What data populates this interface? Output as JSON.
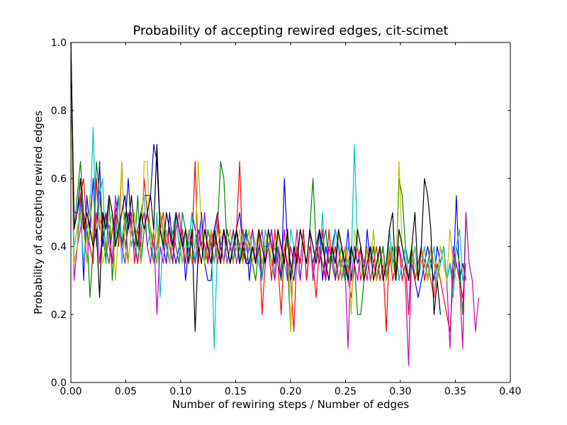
{
  "chart_data": {
    "type": "line",
    "title": "Probability of accepting rewired edges, cit-scimet",
    "xlabel": "Number of rewiring steps / Number of edges",
    "ylabel": "Probability of accepting rewired edges",
    "xlim": [
      0.0,
      0.4
    ],
    "ylim": [
      0.0,
      1.0
    ],
    "x_ticks": [
      "0.00",
      "0.05",
      "0.10",
      "0.15",
      "0.20",
      "0.25",
      "0.30",
      "0.35",
      "0.40"
    ],
    "y_ticks": [
      "0.0",
      "0.2",
      "0.4",
      "0.6",
      "0.8",
      "1.0"
    ],
    "grid": false,
    "legend": "none",
    "x_step": 0.0029,
    "series": [
      {
        "color": "#0000ff",
        "values": [
          1.0,
          0.5,
          0.5,
          0.55,
          0.3,
          0.55,
          0.45,
          0.6,
          0.4,
          0.65,
          0.4,
          0.5,
          0.45,
          0.35,
          0.5,
          0.55,
          0.4,
          0.45,
          0.6,
          0.45,
          0.4,
          0.45,
          0.5,
          0.55,
          0.55,
          0.55,
          0.7,
          0.65,
          0.45,
          0.4,
          0.35,
          0.5,
          0.4,
          0.35,
          0.4,
          0.45,
          0.3,
          0.4,
          0.5,
          0.45,
          0.4,
          0.5,
          0.35,
          0.3,
          0.3,
          0.45,
          0.5,
          0.4,
          0.35,
          0.45,
          0.4,
          0.35,
          0.45,
          0.5,
          0.4,
          0.45,
          0.3,
          0.4,
          0.35,
          0.45,
          0.3,
          0.4,
          0.4,
          0.45,
          0.35,
          0.4,
          0.3,
          0.6,
          0.4,
          0.35,
          0.3,
          0.4,
          0.35,
          0.45,
          0.3,
          0.4,
          0.35,
          0.4,
          0.45,
          0.3,
          0.4,
          0.35,
          0.4,
          0.45,
          0.4,
          0.3,
          0.35,
          0.45,
          0.3,
          0.4,
          0.35,
          0.4,
          0.3,
          0.45,
          0.35,
          0.4,
          0.3,
          0.35,
          0.4,
          0.3,
          0.45,
          0.35,
          0.4,
          0.3,
          0.35,
          0.4,
          0.3,
          0.35,
          0.3,
          0.25,
          0.3,
          0.35,
          0.4,
          0.35,
          0.3,
          0.4,
          0.35,
          0.4,
          0.3,
          0.35,
          0.3,
          0.55,
          0.3,
          0.35,
          0.3
        ]
      },
      {
        "color": "#008000",
        "values": [
          1.0,
          0.45,
          0.55,
          0.65,
          0.5,
          0.45,
          0.25,
          0.4,
          0.65,
          0.55,
          0.45,
          0.35,
          0.55,
          0.3,
          0.45,
          0.55,
          0.4,
          0.5,
          0.35,
          0.45,
          0.4,
          0.55,
          0.35,
          0.45,
          0.5,
          0.4,
          0.35,
          0.4,
          0.5,
          0.45,
          0.4,
          0.35,
          0.45,
          0.4,
          0.35,
          0.5,
          0.45,
          0.4,
          0.35,
          0.4,
          0.45,
          0.4,
          0.35,
          0.45,
          0.4,
          0.35,
          0.45,
          0.65,
          0.6,
          0.4,
          0.35,
          0.4,
          0.45,
          0.4,
          0.35,
          0.45,
          0.4,
          0.35,
          0.3,
          0.4,
          0.35,
          0.4,
          0.45,
          0.35,
          0.4,
          0.35,
          0.3,
          0.4,
          0.35,
          0.15,
          0.4,
          0.35,
          0.45,
          0.4,
          0.35,
          0.45,
          0.6,
          0.4,
          0.35,
          0.4,
          0.45,
          0.35,
          0.4,
          0.3,
          0.35,
          0.4,
          0.3,
          0.35,
          0.4,
          0.35,
          0.2,
          0.2,
          0.3,
          0.4,
          0.35,
          0.4,
          0.3,
          0.35,
          0.4,
          0.3,
          0.35,
          0.4,
          0.3,
          0.6,
          0.55,
          0.4,
          0.35,
          0.4,
          0.3,
          0.35,
          0.4,
          0.3,
          0.35,
          0.4,
          0.35,
          0.3,
          0.35,
          0.4,
          0.3,
          0.35,
          0.3,
          0.4,
          0.35,
          0.2,
          0.5
        ]
      },
      {
        "color": "#ff0000",
        "values": [
          0.95,
          0.35,
          0.4,
          0.55,
          0.6,
          0.45,
          0.4,
          0.35,
          0.6,
          0.45,
          0.5,
          0.4,
          0.35,
          0.45,
          0.5,
          0.4,
          0.65,
          0.4,
          0.45,
          0.5,
          0.35,
          0.45,
          0.4,
          0.6,
          0.5,
          0.45,
          0.4,
          0.35,
          0.45,
          0.5,
          0.4,
          0.45,
          0.35,
          0.5,
          0.4,
          0.45,
          0.35,
          0.45,
          0.4,
          0.65,
          0.35,
          0.45,
          0.4,
          0.35,
          0.45,
          0.4,
          0.5,
          0.35,
          0.45,
          0.4,
          0.35,
          0.4,
          0.45,
          0.65,
          0.35,
          0.4,
          0.45,
          0.35,
          0.4,
          0.45,
          0.2,
          0.35,
          0.4,
          0.3,
          0.45,
          0.35,
          0.2,
          0.4,
          0.35,
          0.3,
          0.15,
          0.4,
          0.35,
          0.45,
          0.3,
          0.4,
          0.35,
          0.25,
          0.4,
          0.35,
          0.3,
          0.45,
          0.35,
          0.4,
          0.3,
          0.35,
          0.4,
          0.3,
          0.25,
          0.35,
          0.4,
          0.3,
          0.35,
          0.4,
          0.3,
          0.35,
          0.4,
          0.3,
          0.35,
          0.15,
          0.4,
          0.3,
          0.35,
          0.4,
          0.3,
          0.35,
          0.2,
          0.4,
          0.3,
          0.35,
          0.4,
          0.3,
          0.35,
          0.3,
          0.25,
          0.35,
          0.3,
          0.25,
          0.2,
          0.15,
          0.3,
          0.35,
          0.3,
          0.25,
          0.35
        ]
      },
      {
        "color": "#00bfbf",
        "values": [
          0.95,
          0.4,
          0.45,
          0.5,
          0.35,
          0.45,
          0.5,
          0.75,
          0.4,
          0.55,
          0.6,
          0.35,
          0.45,
          0.5,
          0.4,
          0.55,
          0.35,
          0.45,
          0.5,
          0.4,
          0.45,
          0.35,
          0.5,
          0.55,
          0.4,
          0.45,
          0.35,
          0.5,
          0.25,
          0.45,
          0.4,
          0.35,
          0.45,
          0.5,
          0.4,
          0.35,
          0.45,
          0.4,
          0.5,
          0.35,
          0.4,
          0.45,
          0.35,
          0.4,
          0.45,
          0.1,
          0.4,
          0.35,
          0.45,
          0.4,
          0.35,
          0.45,
          0.4,
          0.35,
          0.45,
          0.4,
          0.35,
          0.45,
          0.4,
          0.35,
          0.3,
          0.45,
          0.4,
          0.35,
          0.3,
          0.45,
          0.4,
          0.35,
          0.3,
          0.45,
          0.4,
          0.35,
          0.3,
          0.4,
          0.35,
          0.45,
          0.3,
          0.4,
          0.35,
          0.5,
          0.3,
          0.4,
          0.35,
          0.45,
          0.4,
          0.35,
          0.3,
          0.4,
          0.35,
          0.7,
          0.4,
          0.35,
          0.3,
          0.4,
          0.35,
          0.45,
          0.3,
          0.4,
          0.35,
          0.3,
          0.45,
          0.35,
          0.4,
          0.3,
          0.35,
          0.4,
          0.3,
          0.35,
          0.4,
          0.3,
          0.35,
          0.4,
          0.3,
          0.35,
          0.4,
          0.3,
          0.35,
          0.4,
          0.3,
          0.35,
          0.25,
          0.4,
          0.45,
          0.3,
          0.35
        ]
      },
      {
        "color": "#bf00bf",
        "values": [
          0.95,
          0.3,
          0.4,
          0.45,
          0.5,
          0.35,
          0.45,
          0.4,
          0.5,
          0.35,
          0.45,
          0.5,
          0.4,
          0.35,
          0.55,
          0.45,
          0.4,
          0.35,
          0.5,
          0.45,
          0.4,
          0.35,
          0.45,
          0.5,
          0.4,
          0.35,
          0.45,
          0.2,
          0.4,
          0.35,
          0.45,
          0.4,
          0.35,
          0.45,
          0.5,
          0.4,
          0.35,
          0.45,
          0.4,
          0.35,
          0.45,
          0.4,
          0.5,
          0.35,
          0.4,
          0.45,
          0.35,
          0.4,
          0.45,
          0.35,
          0.4,
          0.45,
          0.35,
          0.4,
          0.45,
          0.35,
          0.4,
          0.45,
          0.35,
          0.4,
          0.45,
          0.35,
          0.4,
          0.45,
          0.3,
          0.4,
          0.35,
          0.45,
          0.3,
          0.4,
          0.35,
          0.45,
          0.3,
          0.4,
          0.35,
          0.45,
          0.3,
          0.4,
          0.35,
          0.45,
          0.3,
          0.4,
          0.35,
          0.3,
          0.45,
          0.4,
          0.35,
          0.1,
          0.4,
          0.35,
          0.3,
          0.4,
          0.35,
          0.3,
          0.4,
          0.35,
          0.3,
          0.4,
          0.35,
          0.3,
          0.4,
          0.35,
          0.3,
          0.4,
          0.35,
          0.3,
          0.05,
          0.4,
          0.35,
          0.3,
          0.4,
          0.35,
          0.3,
          0.4,
          0.35,
          0.3,
          0.4,
          0.35,
          0.3,
          0.1,
          0.4,
          0.35,
          0.3,
          0.1,
          0.5,
          0.35,
          0.3,
          0.15,
          0.25
        ]
      },
      {
        "color": "#bfbf00",
        "values": [
          0.95,
          0.35,
          0.4,
          0.5,
          0.45,
          0.35,
          0.55,
          0.4,
          0.45,
          0.5,
          0.35,
          0.4,
          0.45,
          0.5,
          0.3,
          0.45,
          0.65,
          0.4,
          0.35,
          0.45,
          0.5,
          0.4,
          0.35,
          0.65,
          0.65,
          0.4,
          0.45,
          0.35,
          0.5,
          0.4,
          0.45,
          0.35,
          0.4,
          0.5,
          0.45,
          0.35,
          0.4,
          0.45,
          0.35,
          0.4,
          0.65,
          0.45,
          0.35,
          0.4,
          0.45,
          0.35,
          0.4,
          0.45,
          0.35,
          0.4,
          0.45,
          0.35,
          0.4,
          0.45,
          0.35,
          0.4,
          0.45,
          0.35,
          0.4,
          0.45,
          0.35,
          0.4,
          0.45,
          0.35,
          0.4,
          0.45,
          0.35,
          0.4,
          0.45,
          0.15,
          0.4,
          0.35,
          0.45,
          0.4,
          0.35,
          0.45,
          0.4,
          0.35,
          0.45,
          0.4,
          0.35,
          0.3,
          0.4,
          0.35,
          0.45,
          0.3,
          0.4,
          0.35,
          0.2,
          0.45,
          0.4,
          0.35,
          0.3,
          0.4,
          0.35,
          0.45,
          0.3,
          0.4,
          0.35,
          0.3,
          0.4,
          0.35,
          0.3,
          0.65,
          0.4,
          0.35,
          0.3,
          0.4,
          0.35,
          0.3,
          0.4,
          0.35,
          0.3,
          0.4,
          0.35,
          0.3,
          0.4,
          0.35,
          0.3,
          0.45,
          0.35,
          0.3
        ]
      },
      {
        "color": "#000000",
        "values": [
          1.0,
          0.45,
          0.5,
          0.6,
          0.45,
          0.5,
          0.45,
          0.4,
          0.45,
          0.25,
          0.5,
          0.45,
          0.55,
          0.5,
          0.4,
          0.45,
          0.5,
          0.55,
          0.45,
          0.55,
          0.45,
          0.4,
          0.5,
          0.45,
          0.5,
          0.55,
          0.45,
          0.7,
          0.45,
          0.4,
          0.5,
          0.45,
          0.4,
          0.5,
          0.45,
          0.4,
          0.45,
          0.35,
          0.45,
          0.15,
          0.4,
          0.35,
          0.45,
          0.4,
          0.35,
          0.45,
          0.4,
          0.35,
          0.45,
          0.4,
          0.35,
          0.4,
          0.45,
          0.35,
          0.4,
          0.35,
          0.35,
          0.4,
          0.35,
          0.45,
          0.4,
          0.35,
          0.45,
          0.4,
          0.35,
          0.45,
          0.4,
          0.35,
          0.45,
          0.3,
          0.4,
          0.35,
          0.45,
          0.4,
          0.35,
          0.45,
          0.4,
          0.35,
          0.45,
          0.4,
          0.35,
          0.3,
          0.4,
          0.35,
          0.45,
          0.4,
          0.35,
          0.3,
          0.4,
          0.35,
          0.45,
          0.4,
          0.3,
          0.35,
          0.4,
          0.3,
          0.35,
          0.4,
          0.3,
          0.35,
          0.45,
          0.5,
          0.3,
          0.45,
          0.4,
          0.35,
          0.3,
          0.4,
          0.5,
          0.3,
          0.4,
          0.6,
          0.55,
          0.45,
          0.2,
          0.3,
          0.2
        ]
      }
    ]
  }
}
